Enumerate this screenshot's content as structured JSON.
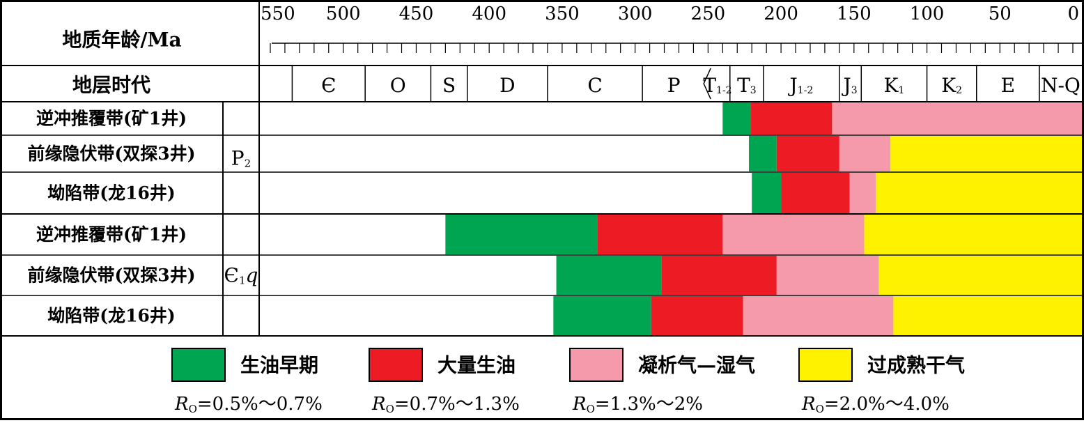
{
  "chart_data": {
    "type": "bar",
    "orientation": "horizontal-timeline",
    "header": {
      "age_label": "地质年龄/Ma",
      "strata_label": "地层时代"
    },
    "x_axis": {
      "reversed": true,
      "xlim": [
        550,
        0
      ],
      "ticks": [
        550,
        500,
        450,
        400,
        350,
        300,
        250,
        200,
        150,
        100,
        50,
        0
      ]
    },
    "periods": [
      {
        "label": "Є",
        "sub": "",
        "start": 535,
        "end": 485
      },
      {
        "label": "O",
        "sub": "",
        "start": 485,
        "end": 440
      },
      {
        "label": "S",
        "sub": "",
        "start": 440,
        "end": 415
      },
      {
        "label": "D",
        "sub": "",
        "start": 415,
        "end": 360
      },
      {
        "label": "C",
        "sub": "",
        "start": 360,
        "end": 295
      },
      {
        "label": "P",
        "sub": "",
        "start": 295,
        "end": 252
      },
      {
        "label": "T",
        "sub": "1-2",
        "start": 252,
        "end": 235
      },
      {
        "label": "T",
        "sub": "3",
        "start": 235,
        "end": 212
      },
      {
        "label": "J",
        "sub": "1-2",
        "start": 212,
        "end": 160
      },
      {
        "label": "J",
        "sub": "3",
        "start": 160,
        "end": 145
      },
      {
        "label": "K",
        "sub": "1",
        "start": 145,
        "end": 100
      },
      {
        "label": "K",
        "sub": "2",
        "start": 100,
        "end": 66
      },
      {
        "label": "E",
        "sub": "",
        "start": 66,
        "end": 23
      },
      {
        "label": "N-Q",
        "sub": "",
        "start": 23,
        "end": 0
      }
    ],
    "groups": [
      {
        "label": "P",
        "sub": "2",
        "italic_suffix": ""
      },
      {
        "label": "Є",
        "sub": "1",
        "italic_suffix": "q"
      }
    ],
    "rows": [
      {
        "group": 0,
        "label": "逆冲推覆带(矿1井)",
        "segments": [
          {
            "stage": 0,
            "start": 240,
            "end": 221
          },
          {
            "stage": 1,
            "start": 221,
            "end": 165
          },
          {
            "stage": 2,
            "start": 165,
            "end": 0
          }
        ]
      },
      {
        "group": 0,
        "label": "前缘隐伏带(双探3井)",
        "segments": [
          {
            "stage": 0,
            "start": 222,
            "end": 203
          },
          {
            "stage": 1,
            "start": 203,
            "end": 160
          },
          {
            "stage": 2,
            "start": 160,
            "end": 125
          },
          {
            "stage": 3,
            "start": 125,
            "end": 0
          }
        ]
      },
      {
        "group": 0,
        "label": "坳陷带(龙16井)",
        "segments": [
          {
            "stage": 0,
            "start": 220,
            "end": 200
          },
          {
            "stage": 1,
            "start": 200,
            "end": 153
          },
          {
            "stage": 2,
            "start": 153,
            "end": 135
          },
          {
            "stage": 3,
            "start": 135,
            "end": 0
          }
        ]
      },
      {
        "group": 1,
        "label": "逆冲推覆带(矿1井)",
        "segments": [
          {
            "stage": 0,
            "start": 430,
            "end": 326
          },
          {
            "stage": 1,
            "start": 326,
            "end": 240
          },
          {
            "stage": 2,
            "start": 240,
            "end": 143
          },
          {
            "stage": 3,
            "start": 143,
            "end": 0
          }
        ]
      },
      {
        "group": 1,
        "label": "前缘隐伏带(双探3井)",
        "segments": [
          {
            "stage": 0,
            "start": 354,
            "end": 282
          },
          {
            "stage": 1,
            "start": 282,
            "end": 203
          },
          {
            "stage": 2,
            "start": 203,
            "end": 133
          },
          {
            "stage": 3,
            "start": 133,
            "end": 0
          }
        ]
      },
      {
        "group": 1,
        "label": "坳陷带(龙16井)",
        "segments": [
          {
            "stage": 0,
            "start": 356,
            "end": 289
          },
          {
            "stage": 1,
            "start": 289,
            "end": 226
          },
          {
            "stage": 2,
            "start": 226,
            "end": 123
          },
          {
            "stage": 3,
            "start": 123,
            "end": 0
          }
        ]
      }
    ],
    "series": [
      {
        "name": "生油早期",
        "ro_prefix": "R",
        "ro_sub": "O",
        "ro_range": "=0.5%～0.7%",
        "color": "#00a551"
      },
      {
        "name": "大量生油",
        "ro_prefix": "R",
        "ro_sub": "O",
        "ro_range": "=0.7%～1.3%",
        "color": "#ed1c24"
      },
      {
        "name": "凝析气—湿气",
        "ro_prefix": "R",
        "ro_sub": "O",
        "ro_range": "=1.3%～2%",
        "color": "#f49aaa"
      },
      {
        "name": "过成熟干气",
        "ro_prefix": "R",
        "ro_sub": "O",
        "ro_range": "=2.0%～4.0%",
        "color": "#fff200"
      }
    ]
  }
}
